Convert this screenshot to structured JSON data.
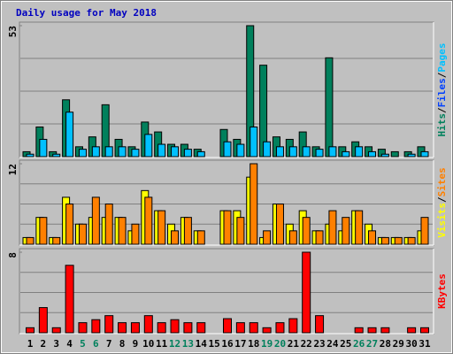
{
  "chart_data": [
    {
      "type": "bar",
      "title": "Daily usage for May 2018",
      "ylim": [
        0,
        53
      ],
      "yticks": [
        53
      ],
      "legend": [
        {
          "text": "Pages",
          "color": "#00c0ff"
        },
        {
          "text": "Files",
          "color": "#0040ff"
        },
        {
          "text": "Hits",
          "color": "#00805c"
        }
      ],
      "legend_separator": "/",
      "series": [
        {
          "name": "Hits",
          "color": "#00805c",
          "values": [
            2,
            12,
            2,
            23,
            4,
            8,
            21,
            7,
            4,
            14,
            10,
            5,
            5,
            3,
            0,
            11,
            7,
            53,
            37,
            8,
            7,
            10,
            4,
            40,
            4,
            6,
            4,
            3,
            2,
            2,
            4
          ]
        },
        {
          "name": "Pages",
          "color": "#00c0ff",
          "values": [
            1,
            7,
            1,
            18,
            3,
            4,
            4,
            4,
            3,
            9,
            5,
            4,
            3,
            2,
            0,
            6,
            5,
            12,
            6,
            4,
            4,
            4,
            3,
            4,
            2,
            4,
            2,
            1,
            0,
            1,
            2
          ]
        }
      ]
    },
    {
      "type": "bar",
      "ylim": [
        0,
        12
      ],
      "yticks": [
        12
      ],
      "legend": [
        {
          "text": "Sites",
          "color": "#ff8000"
        },
        {
          "text": "Visits",
          "color": "#ffff00"
        }
      ],
      "legend_separator": "/",
      "series": [
        {
          "name": "Visits",
          "color": "#ffff00",
          "values": [
            1,
            4,
            1,
            7,
            3,
            4,
            4,
            4,
            2,
            8,
            5,
            3,
            4,
            2,
            0,
            5,
            5,
            10,
            1,
            6,
            3,
            5,
            2,
            3,
            2,
            5,
            3,
            1,
            1,
            1,
            2
          ]
        },
        {
          "name": "Sites",
          "color": "#ff8000",
          "values": [
            1,
            4,
            1,
            6,
            3,
            7,
            6,
            4,
            3,
            7,
            5,
            2,
            4,
            2,
            0,
            5,
            4,
            12,
            2,
            6,
            2,
            4,
            2,
            5,
            4,
            5,
            2,
            1,
            1,
            1,
            4
          ]
        }
      ]
    },
    {
      "type": "bar",
      "ylim": [
        0,
        8
      ],
      "yticks": [
        8
      ],
      "legend": [
        {
          "text": "KBytes",
          "color": "#ff0000"
        }
      ],
      "categories": [
        "1",
        "2",
        "3",
        "4",
        "5",
        "6",
        "7",
        "8",
        "9",
        "10",
        "11",
        "12",
        "13",
        "14",
        "15",
        "16",
        "17",
        "18",
        "19",
        "20",
        "21",
        "22",
        "23",
        "24",
        "25",
        "26",
        "27",
        "28",
        "29",
        "30",
        "31"
      ],
      "category_colors": [
        "#000000",
        "#000000",
        "#000000",
        "#000000",
        "#00805c",
        "#00805c",
        "#000000",
        "#000000",
        "#000000",
        "#000000",
        "#000000",
        "#00805c",
        "#00805c",
        "#000000",
        "#000000",
        "#000000",
        "#000000",
        "#000000",
        "#00805c",
        "#00805c",
        "#000000",
        "#000000",
        "#000000",
        "#000000",
        "#000000",
        "#00805c",
        "#00805c",
        "#000000",
        "#000000",
        "#000000",
        "#000000"
      ],
      "series": [
        {
          "name": "KBytes",
          "color": "#ff0000",
          "values": [
            0.5,
            2.5,
            0.5,
            6.7,
            1,
            1.3,
            1.7,
            1,
            1,
            1.7,
            1,
            1.3,
            1,
            1,
            0,
            1.4,
            1,
            1,
            0.5,
            1,
            1.4,
            8,
            1.7,
            0,
            0,
            0.5,
            0.5,
            0.5,
            0,
            0.5,
            0.5
          ]
        }
      ]
    }
  ]
}
